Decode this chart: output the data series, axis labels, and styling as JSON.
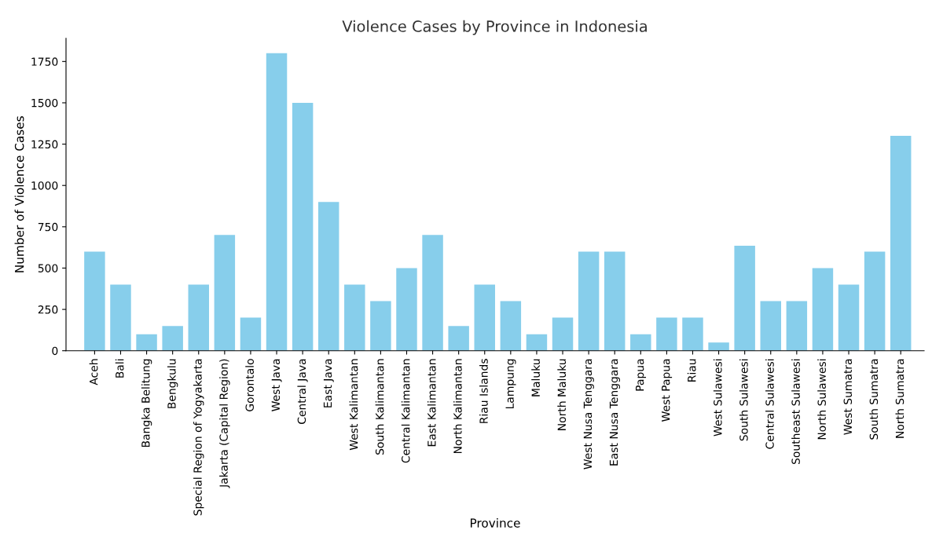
{
  "chart_data": {
    "type": "bar",
    "title": "Violence Cases by Province in Indonesia",
    "xlabel": "Province",
    "ylabel": "Number of Violence Cases",
    "categories": [
      "Aceh",
      "Bali",
      "Bangka Belitung",
      "Bengkulu",
      "Special Region of Yogyakarta",
      "Jakarta (Capital Region)",
      "Gorontalo",
      "West Java",
      "Central Java",
      "East Java",
      "West Kalimantan",
      "South Kalimantan",
      "Central Kalimantan",
      "East Kalimantan",
      "North Kalimantan",
      "Riau Islands",
      "Lampung",
      "Maluku",
      "North Maluku",
      "West Nusa Tenggara",
      "East Nusa Tenggara",
      "Papua",
      "West Papua",
      "Riau",
      "West Sulawesi",
      "South Sulawesi",
      "Central Sulawesi",
      "Southeast Sulawesi",
      "North Sulawesi",
      "West Sumatra",
      "South Sumatra",
      "North Sumatra"
    ],
    "values": [
      600,
      400,
      100,
      150,
      400,
      700,
      200,
      1800,
      1500,
      900,
      400,
      300,
      500,
      700,
      150,
      400,
      300,
      100,
      200,
      600,
      600,
      100,
      200,
      200,
      50,
      635,
      300,
      300,
      500,
      400,
      600,
      1300
    ],
    "color": "#87ceeb",
    "ylim": [
      0,
      1890
    ],
    "yticks": [
      0,
      250,
      500,
      750,
      1000,
      1250,
      1500,
      1750
    ],
    "grid": false,
    "legend": false
  }
}
